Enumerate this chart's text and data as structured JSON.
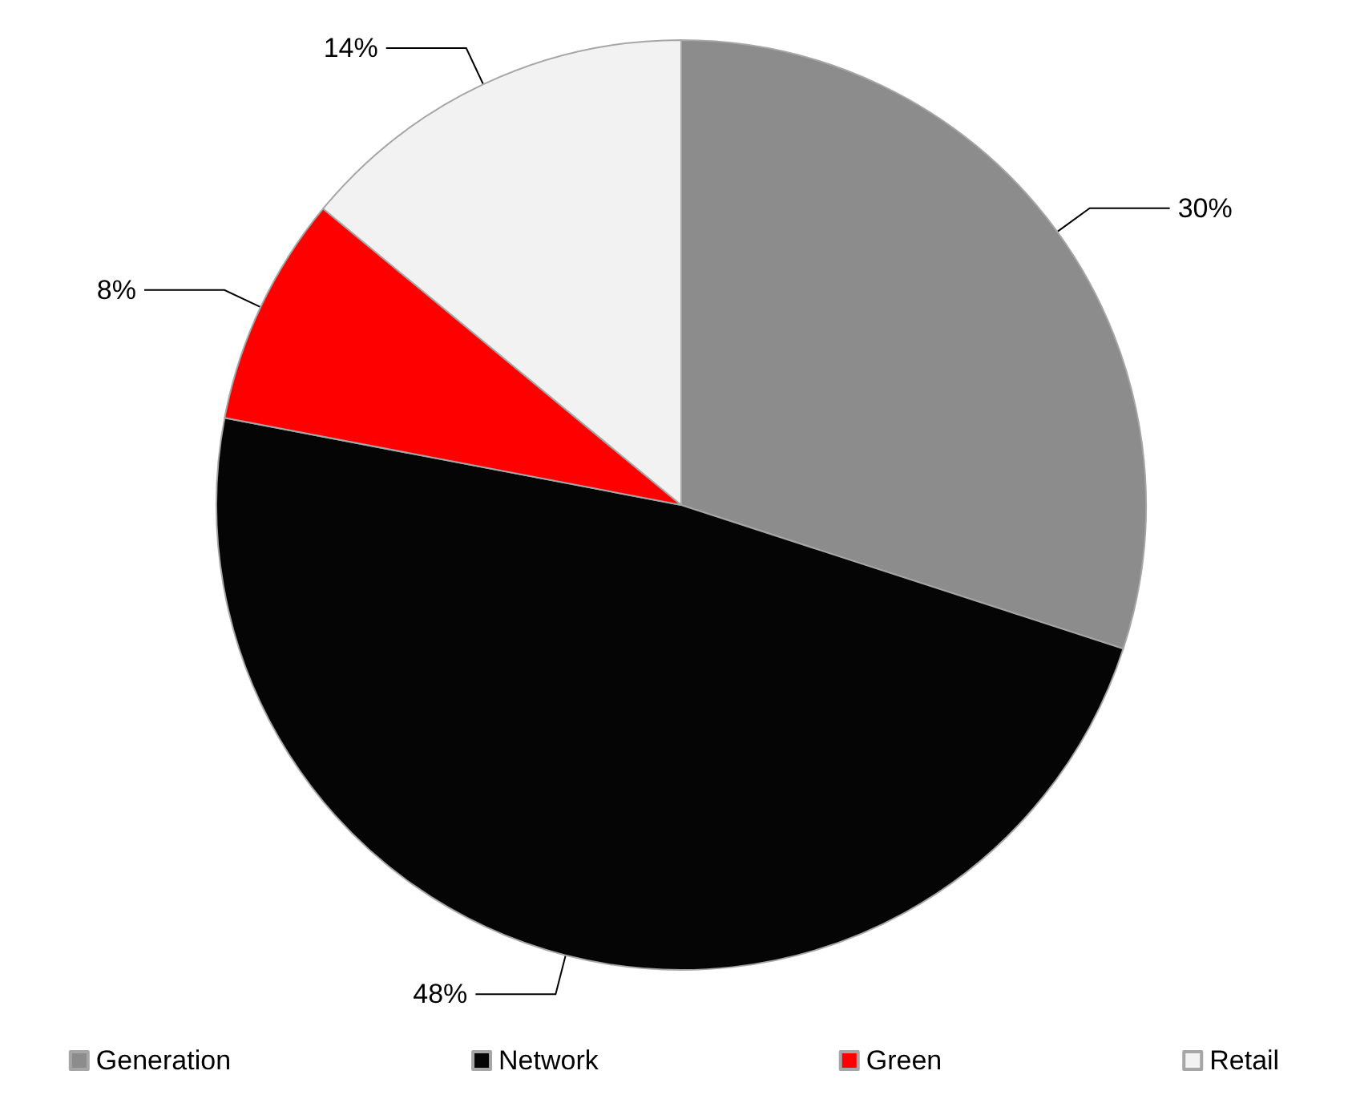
{
  "chart_data": {
    "type": "pie",
    "categories": [
      "Generation",
      "Network",
      "Green",
      "Retail"
    ],
    "values": [
      30,
      48,
      8,
      14
    ],
    "value_labels": [
      "30%",
      "48%",
      "8%",
      "14%"
    ],
    "colors": [
      "#8c8c8c",
      "#050505",
      "#ff0000",
      "#f2f2f2"
    ],
    "legend": "bottom"
  }
}
